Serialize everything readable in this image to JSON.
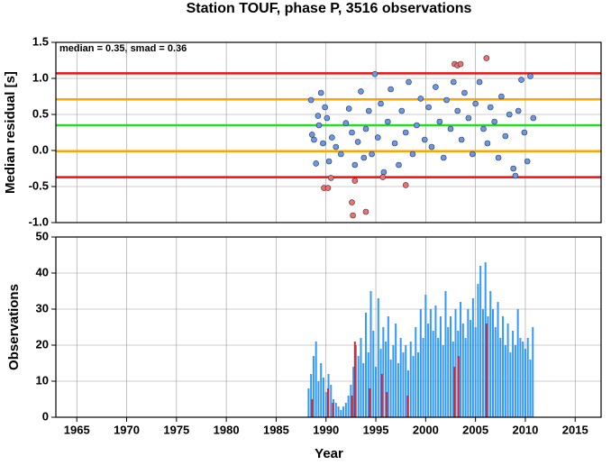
{
  "chart_data": [
    {
      "type": "scatter",
      "title": "Station TOUF, phase P, 3516 observations",
      "y_label": "Median residual [s]",
      "annotation": "median = 0.35, smad = 0.36",
      "xlim": [
        1962.9,
        2017.6
      ],
      "ylim": [
        -1.0,
        1.5
      ],
      "yticks": [
        -0.5,
        {
          "value": -1.0,
          "label": "-1.0"
        },
        {
          "value": 0,
          "label": "0.0"
        },
        0.5,
        {
          "value": 1.0,
          "label": "1.0"
        },
        1.5
      ],
      "grid": true,
      "hlines": [
        {
          "value": 1.07,
          "color": "#ee1111"
        },
        {
          "value": 0.71,
          "color": "#ffa500"
        },
        {
          "value": 0.35,
          "color": "#22dd22"
        },
        {
          "value": -0.01,
          "color": "#ffa500"
        },
        {
          "value": -0.37,
          "color": "#ee1111"
        }
      ],
      "series": [
        {
          "color": "#6699ee",
          "x": [
            1988.5,
            1988.6,
            1988.8,
            1989.0,
            1989.2,
            1989.3,
            1989.5,
            1989.7,
            1989.9,
            1990.1,
            1990.3,
            1990.6,
            1991.0,
            1991.5,
            1992.0,
            1992.3,
            1992.6,
            1992.9,
            1993.2,
            1993.5,
            1993.8,
            1994.0,
            1994.3,
            1994.6,
            1994.9,
            1995.2,
            1995.5,
            1995.8,
            1996.2,
            1996.5,
            1996.9,
            1997.3,
            1997.6,
            1998.0,
            1998.3,
            1998.7,
            1999.1,
            1999.5,
            1999.9,
            2000.3,
            2000.6,
            2001.0,
            2001.4,
            2001.8,
            2002.1,
            2002.5,
            2002.8,
            2003.2,
            2003.6,
            2003.9,
            2004.3,
            2004.7,
            2005.0,
            2005.4,
            2005.8,
            2006.2,
            2006.5,
            2006.9,
            2007.3,
            2007.6,
            2008.0,
            2008.4,
            2008.8,
            2009.0,
            2009.3,
            2009.6,
            2009.9,
            2010.2,
            2010.5,
            2010.8
          ],
          "values": [
            0.7,
            0.22,
            0.15,
            -0.18,
            0.48,
            0.35,
            0.8,
            0.1,
            0.6,
            0.45,
            -0.15,
            0.18,
            0.05,
            -0.05,
            0.38,
            0.58,
            0.25,
            -0.2,
            0.12,
            0.82,
            -0.1,
            0.3,
            0.55,
            -0.05,
            1.06,
            0.18,
            0.65,
            -0.3,
            0.4,
            0.85,
            0.1,
            -0.2,
            0.55,
            0.25,
            0.95,
            -0.05,
            0.35,
            0.72,
            0.15,
            0.6,
            0.05,
            0.88,
            0.4,
            -0.1,
            0.7,
            0.3,
            0.95,
            0.55,
            0.15,
            0.8,
            0.45,
            -0.05,
            0.65,
            0.95,
            0.3,
            0.1,
            0.6,
            0.4,
            -0.1,
            0.75,
            0.2,
            0.5,
            -0.25,
            -0.35,
            0.55,
            0.98,
            0.25,
            -0.15,
            1.03,
            0.45
          ]
        },
        {
          "color": "#f07070",
          "x": [
            1989.8,
            1990.2,
            1990.5,
            1992.6,
            1992.7,
            1992.9,
            1994.0,
            1995.7,
            1998.0,
            2002.9,
            2003.2,
            2003.5,
            2006.1
          ],
          "values": [
            -0.52,
            -0.52,
            -0.38,
            -0.72,
            -0.9,
            -0.42,
            -0.85,
            -0.37,
            -0.48,
            1.2,
            1.18,
            1.2,
            1.28
          ]
        }
      ]
    },
    {
      "type": "bar",
      "y_label": "Observations",
      "x_label": "Year",
      "xlim": [
        1962.9,
        2017.6
      ],
      "ylim": [
        0,
        50
      ],
      "xticks": [
        1965,
        1970,
        1975,
        1980,
        1985,
        1990,
        1995,
        2000,
        2005,
        2010,
        2015
      ],
      "yticks": [
        0,
        10,
        20,
        30,
        40,
        50
      ],
      "grid": true,
      "series": [
        {
          "color": "#3399ff",
          "x": [
            1988.25,
            1988.5,
            1988.75,
            1989.0,
            1989.25,
            1989.5,
            1989.75,
            1990.0,
            1990.25,
            1990.5,
            1990.75,
            1991.0,
            1991.25,
            1991.5,
            1991.75,
            1992.0,
            1992.25,
            1992.5,
            1992.75,
            1993.0,
            1993.25,
            1993.5,
            1993.75,
            1994.0,
            1994.25,
            1994.5,
            1994.75,
            1995.0,
            1995.25,
            1995.5,
            1995.75,
            1996.0,
            1996.25,
            1996.5,
            1996.75,
            1997.0,
            1997.25,
            1997.5,
            1997.75,
            1998.0,
            1998.25,
            1998.5,
            1998.75,
            1999.0,
            1999.25,
            1999.5,
            1999.75,
            2000.0,
            2000.25,
            2000.5,
            2000.75,
            2001.0,
            2001.25,
            2001.5,
            2001.75,
            2002.0,
            2002.25,
            2002.5,
            2002.75,
            2003.0,
            2003.25,
            2003.5,
            2003.75,
            2004.0,
            2004.25,
            2004.5,
            2004.75,
            2005.0,
            2005.25,
            2005.5,
            2005.75,
            2006.0,
            2006.25,
            2006.5,
            2006.75,
            2007.0,
            2007.25,
            2007.5,
            2007.75,
            2008.0,
            2008.25,
            2008.5,
            2008.75,
            2009.0,
            2009.25,
            2009.5,
            2009.75,
            2010.0,
            2010.25,
            2010.5,
            2010.75
          ],
          "values": [
            8,
            12,
            17,
            21,
            10,
            15,
            11,
            7,
            12,
            9,
            5,
            4,
            3,
            2,
            3,
            4,
            6,
            9,
            14,
            20,
            17,
            22,
            15,
            29,
            18,
            35,
            24,
            14,
            33,
            19,
            25,
            21,
            28,
            16,
            20,
            26,
            15,
            22,
            18,
            20,
            13,
            21,
            17,
            25,
            18,
            30,
            22,
            34,
            26,
            30,
            24,
            31,
            22,
            28,
            20,
            35,
            25,
            28,
            21,
            30,
            24,
            32,
            26,
            22,
            30,
            27,
            33,
            25,
            37,
            42,
            30,
            43,
            28,
            35,
            30,
            25,
            32,
            22,
            28,
            20,
            26,
            18,
            24,
            20,
            30,
            22,
            21,
            19,
            22,
            16,
            25
          ]
        },
        {
          "color": "#dd2222",
          "x": [
            1988.6,
            1990.2,
            1990.7,
            1992.6,
            1992.9,
            1994.4,
            1995.6,
            1996.1,
            1998.2,
            2002.9,
            2003.3,
            2006.1
          ],
          "values": [
            5,
            8,
            4,
            6,
            21,
            8,
            12,
            7,
            6,
            14,
            17,
            26
          ]
        }
      ]
    }
  ]
}
